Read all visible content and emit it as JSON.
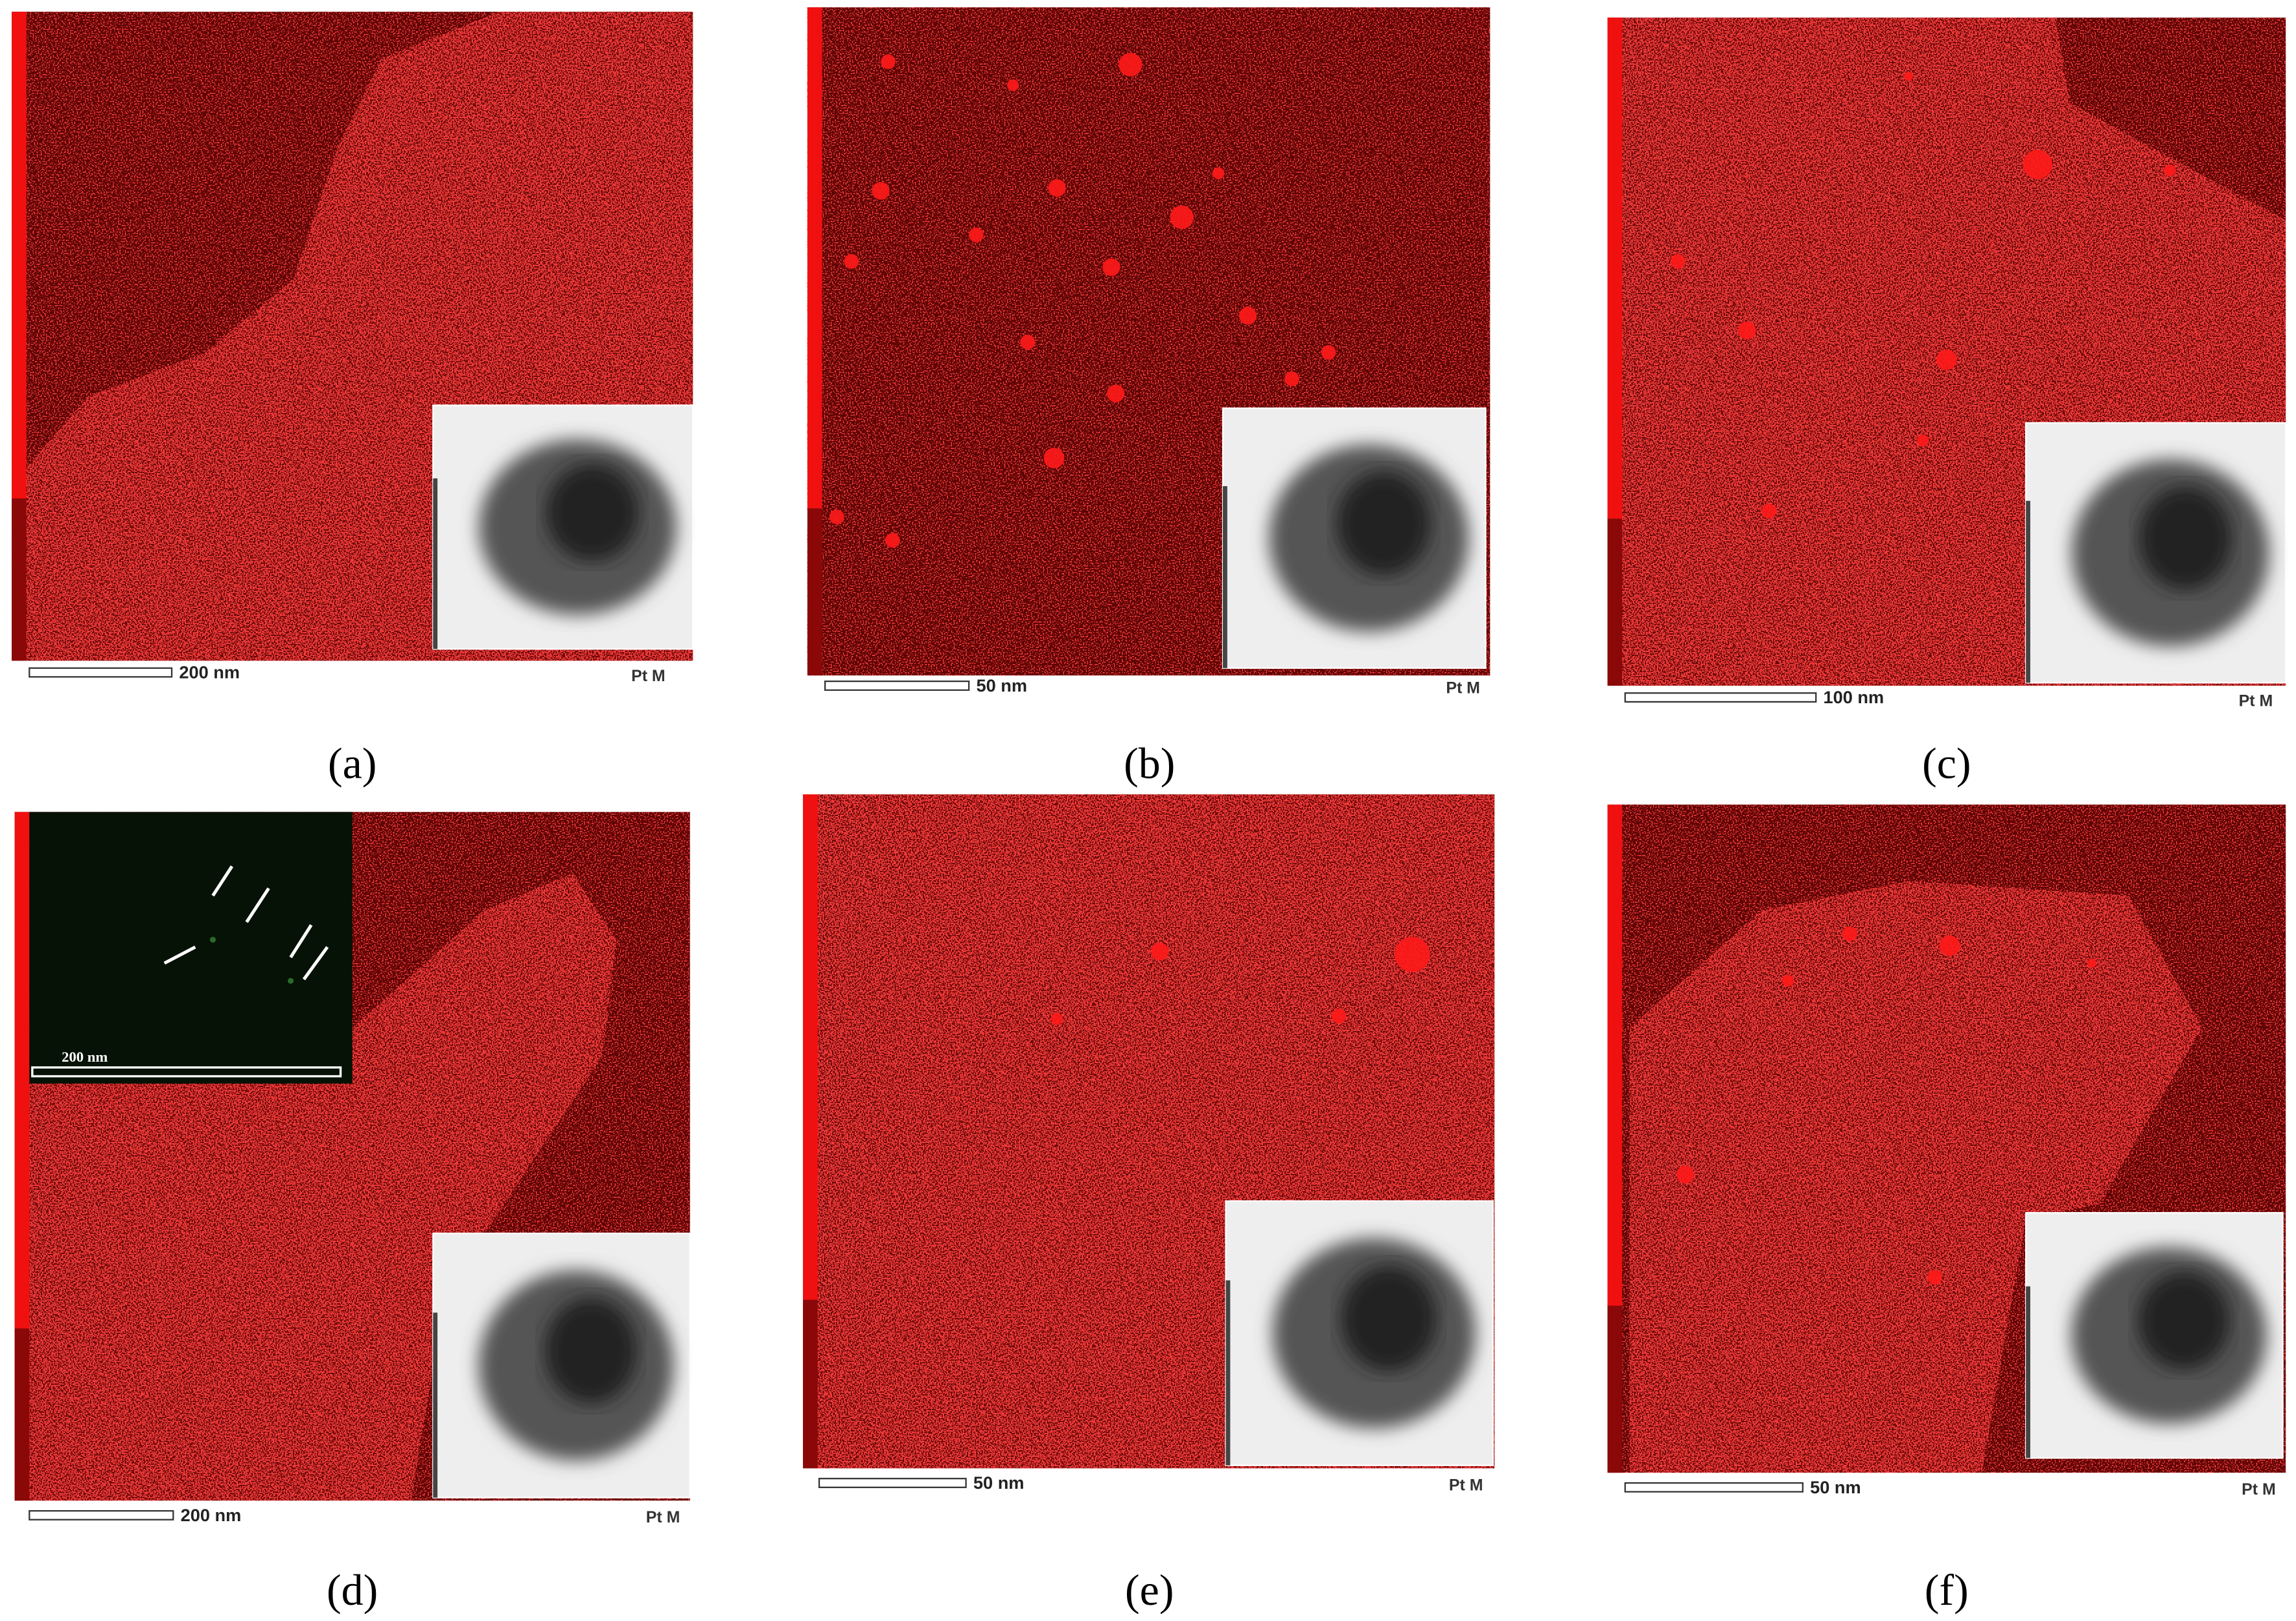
{
  "panels": [
    {
      "label": "(a)",
      "scale_bar": "200 nm",
      "element": "Pt M"
    },
    {
      "label": "(b)",
      "scale_bar": "50 nm",
      "element": "Pt M"
    },
    {
      "label": "(c)",
      "scale_bar": "100 nm",
      "element": "Pt M"
    },
    {
      "label": "(d)",
      "scale_bar": "200 nm",
      "element": "Pt M",
      "inset_scale_bar": "200 nm"
    },
    {
      "label": "(e)",
      "scale_bar": "50 nm",
      "element": "Pt M"
    },
    {
      "label": "(f)",
      "scale_bar": "50 nm",
      "element": "Pt M"
    }
  ]
}
